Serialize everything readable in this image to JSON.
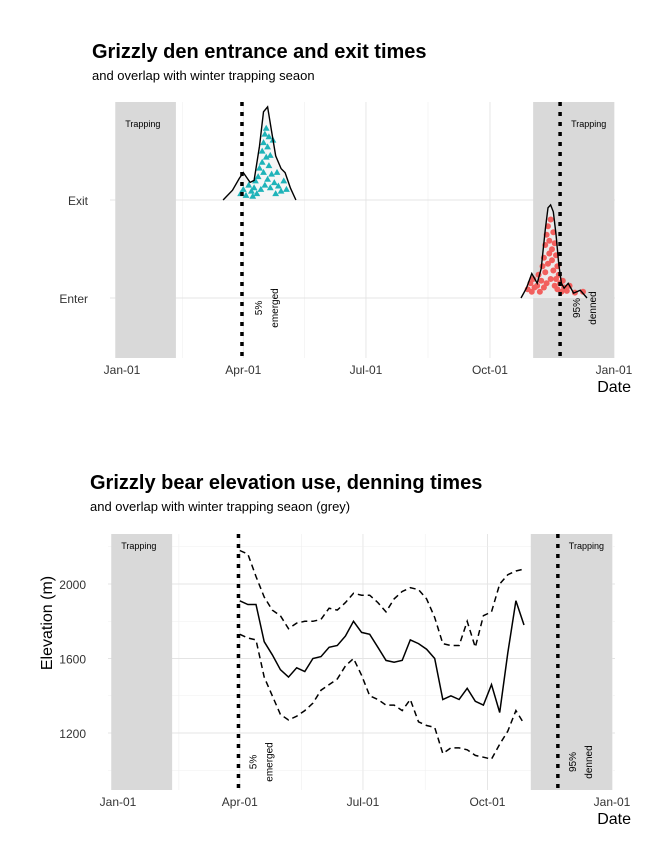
{
  "chart_data": [
    {
      "type": "density-ridge-scatter",
      "title": "Grizzly den entrance and exit times",
      "subtitle": "and overlap with winter trapping seaon",
      "xlabel": "Date",
      "ylabel": "",
      "x_ticks": [
        "Jan-01",
        "Apr-01",
        "Jul-01",
        "Oct-01",
        "Jan-01"
      ],
      "x_tick_days": [
        0,
        90,
        181,
        273,
        365
      ],
      "y_categories": [
        "Enter",
        "Exit"
      ],
      "shaded_regions": [
        {
          "label": "Trapping",
          "start_day": -5,
          "end_day": 40
        },
        {
          "label": "Trapping",
          "start_day": 305,
          "end_day": 365
        }
      ],
      "vlines": [
        {
          "day": 89,
          "label_pct": "5%",
          "label_text": "emerged"
        },
        {
          "day": 325,
          "label_pct": "95%",
          "label_text": "denned"
        }
      ],
      "series": [
        {
          "name": "Exit",
          "color": "#1fb3b9",
          "marker": "triangle",
          "density_x": [
            75,
            82,
            87,
            90,
            95,
            98,
            102,
            105,
            108,
            111,
            114,
            118,
            121,
            125,
            129
          ],
          "density_y": [
            0.0,
            0.1,
            0.22,
            0.28,
            0.18,
            0.2,
            0.55,
            0.9,
            0.95,
            0.7,
            0.45,
            0.32,
            0.28,
            0.12,
            0.0
          ],
          "points_day": [
            88,
            90,
            92,
            94,
            96,
            97,
            98,
            99,
            100,
            101,
            102,
            103,
            104,
            104,
            105,
            105,
            106,
            106,
            107,
            107,
            108,
            108,
            109,
            109,
            110,
            110,
            111,
            112,
            113,
            114,
            115,
            116,
            118,
            120,
            122
          ],
          "points_jitter": [
            0.05,
            0.1,
            0.03,
            0.15,
            0.08,
            0.02,
            0.12,
            0.2,
            0.05,
            0.25,
            0.35,
            0.1,
            0.42,
            0.55,
            0.3,
            0.65,
            0.15,
            0.75,
            0.48,
            0.82,
            0.22,
            0.6,
            0.38,
            0.72,
            0.12,
            0.5,
            0.28,
            0.68,
            0.18,
            0.05,
            0.3,
            0.14,
            0.08,
            0.2,
            0.1
          ]
        },
        {
          "name": "Enter",
          "color": "#f2605e",
          "marker": "circle",
          "density_x": [
            296,
            300,
            304,
            308,
            311,
            314,
            316,
            318,
            320,
            322,
            324,
            326,
            328,
            331,
            335,
            340,
            345
          ],
          "density_y": [
            0.0,
            0.1,
            0.25,
            0.15,
            0.3,
            0.7,
            0.92,
            0.95,
            0.88,
            0.65,
            0.35,
            0.15,
            0.1,
            0.15,
            0.05,
            0.08,
            0.0
          ],
          "points_day": [
            301,
            303,
            304,
            305,
            306,
            308,
            309,
            310,
            311,
            312,
            313,
            313,
            314,
            314,
            315,
            315,
            316,
            316,
            317,
            317,
            318,
            318,
            319,
            319,
            320,
            320,
            321,
            321,
            322,
            322,
            323,
            323,
            324,
            325,
            326,
            327,
            328,
            330,
            332,
            336,
            342
          ],
          "points_jitter": [
            0.08,
            0.15,
            0.05,
            0.2,
            0.1,
            0.12,
            0.25,
            0.05,
            0.18,
            0.35,
            0.1,
            0.45,
            0.28,
            0.6,
            0.15,
            0.72,
            0.38,
            0.82,
            0.5,
            0.65,
            0.2,
            0.9,
            0.42,
            0.55,
            0.3,
            0.75,
            0.12,
            0.62,
            0.48,
            0.2,
            0.35,
            0.08,
            0.25,
            0.15,
            0.05,
            0.18,
            0.1,
            0.06,
            0.12,
            0.04,
            0.05
          ]
        }
      ]
    },
    {
      "type": "line",
      "title": "Grizzly bear elevation use, denning times",
      "subtitle": "and overlap with winter trapping seaon (grey)",
      "xlabel": "Date",
      "ylabel": "Elevation (m)",
      "ylim": [
        900,
        2280
      ],
      "y_ticks": [
        1200,
        1600,
        2000
      ],
      "x_ticks": [
        "Jan-01",
        "Apr-01",
        "Jul-01",
        "Oct-01",
        "Jan-01"
      ],
      "x_tick_days": [
        0,
        90,
        181,
        273,
        365
      ],
      "shaded_regions": [
        {
          "label": "Trapping",
          "start_day": -5,
          "end_day": 40
        },
        {
          "label": "Trapping",
          "start_day": 305,
          "end_day": 365
        }
      ],
      "vlines": [
        {
          "day": 89,
          "label_pct": "5%",
          "label_text": "emerged"
        },
        {
          "day": 325,
          "label_pct": "95%",
          "label_text": "denned"
        }
      ],
      "x": [
        90,
        96,
        102,
        108,
        114,
        120,
        126,
        132,
        138,
        144,
        150,
        156,
        162,
        168,
        174,
        180,
        186,
        192,
        198,
        204,
        210,
        216,
        222,
        228,
        234,
        240,
        246,
        252,
        258,
        264,
        270,
        276,
        282,
        288,
        294,
        300,
        306,
        312,
        318,
        324,
        330
      ],
      "series": [
        {
          "name": "mean",
          "style": "solid",
          "values": [
            1910,
            1890,
            1890,
            1690,
            1620,
            1540,
            1500,
            1550,
            1530,
            1600,
            1610,
            1660,
            1670,
            1720,
            1800,
            1740,
            1730,
            1660,
            1590,
            1580,
            1590,
            1700,
            1680,
            1650,
            1600,
            1380,
            1400,
            1380,
            1440,
            1370,
            1350,
            1460,
            1310,
            1630,
            1910,
            1780,
            null,
            null,
            null,
            null,
            null
          ]
        },
        {
          "name": "upper",
          "style": "dashed",
          "values": [
            2180,
            2160,
            2040,
            1930,
            1860,
            1830,
            1760,
            1790,
            1800,
            1800,
            1810,
            1870,
            1860,
            1900,
            1950,
            1940,
            1940,
            1900,
            1850,
            1920,
            1960,
            1980,
            1970,
            1920,
            1820,
            1680,
            1670,
            1670,
            1800,
            1660,
            1830,
            1850,
            2000,
            2050,
            2070,
            2080,
            null,
            null,
            null,
            null,
            null
          ]
        },
        {
          "name": "lower",
          "style": "dashed",
          "values": [
            1730,
            1710,
            1700,
            1500,
            1400,
            1300,
            1270,
            1290,
            1320,
            1360,
            1430,
            1460,
            1490,
            1560,
            1600,
            1510,
            1400,
            1380,
            1350,
            1350,
            1320,
            1380,
            1260,
            1240,
            1230,
            1090,
            1120,
            1120,
            1110,
            1080,
            1070,
            1060,
            1140,
            1210,
            1320,
            1250,
            null,
            null,
            null,
            null,
            null
          ]
        }
      ]
    }
  ]
}
